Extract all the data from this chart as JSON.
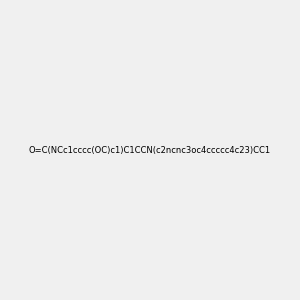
{
  "smiles": "O=C(NCc1cccc(OC)c1)C1CCN(c2ncnc3oc4ccccc4c23)CC1",
  "title": "",
  "bg_color": "#f0f0f0",
  "figsize": [
    3.0,
    3.0
  ],
  "dpi": 100
}
